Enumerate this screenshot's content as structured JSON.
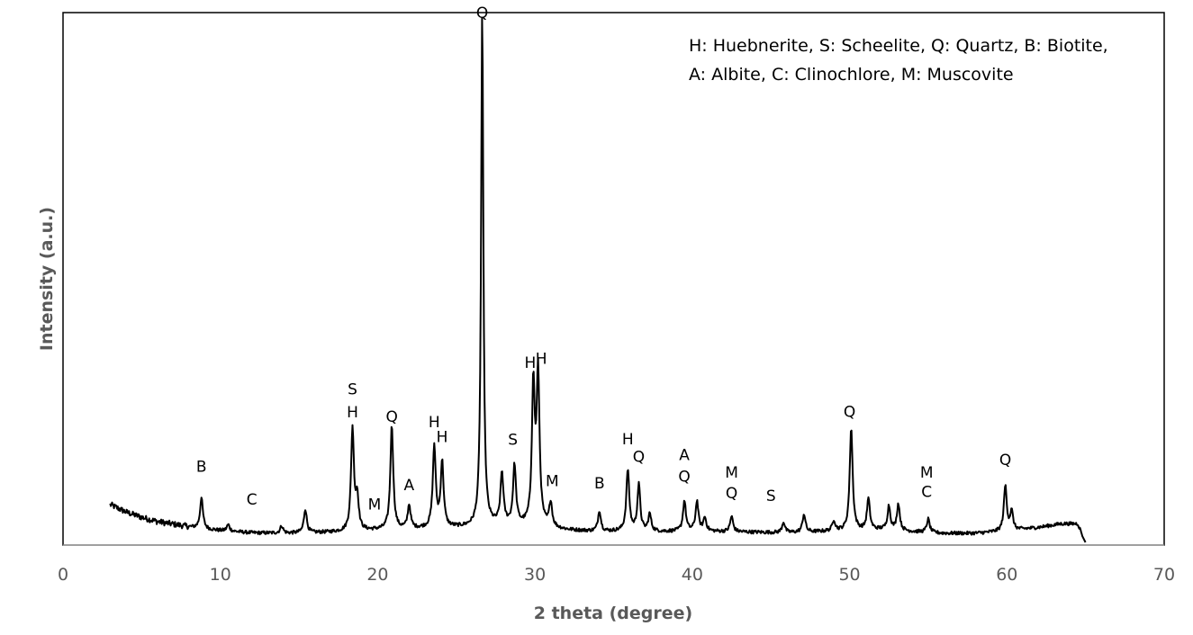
{
  "chart_data": {
    "type": "line",
    "title": "",
    "xlabel": "2 theta (degree)",
    "ylabel": "Intensity (a.u.)",
    "xlim": [
      0,
      70
    ],
    "ylim": [
      0,
      100
    ],
    "x_ticks": [
      0,
      10,
      20,
      30,
      40,
      50,
      60,
      70
    ],
    "x_tick_labels": [
      "0",
      "10",
      "20",
      "30",
      "40",
      "50",
      "60",
      "70"
    ],
    "y_ticks_shown": false,
    "grid": false,
    "legend_position": "top-right",
    "legend_lines": [
      "H: Huebnerite, S: Scheelite, Q: Quartz, B: Biotite,",
      "A: Albite, C: Clinochlore, M: Muscovite"
    ],
    "series": [
      {
        "color": "#000000",
        "baseline": [
          [
            3.0,
            7.6
          ],
          [
            4.0,
            6.2
          ],
          [
            5.0,
            5.2
          ],
          [
            6.0,
            4.4
          ],
          [
            7.0,
            3.9
          ],
          [
            8.0,
            3.4
          ],
          [
            9.0,
            3.0
          ],
          [
            10.0,
            2.7
          ],
          [
            12.0,
            2.3
          ],
          [
            14.0,
            2.2
          ],
          [
            16.0,
            2.3
          ],
          [
            18.0,
            2.5
          ],
          [
            20.0,
            2.8
          ],
          [
            22.0,
            3.0
          ],
          [
            24.0,
            3.2
          ],
          [
            26.0,
            3.3
          ],
          [
            27.0,
            3.6
          ],
          [
            28.0,
            3.8
          ],
          [
            30.0,
            3.5
          ],
          [
            32.0,
            2.8
          ],
          [
            34.0,
            2.5
          ],
          [
            36.0,
            2.6
          ],
          [
            38.0,
            2.5
          ],
          [
            40.0,
            2.6
          ],
          [
            42.0,
            2.5
          ],
          [
            44.0,
            2.4
          ],
          [
            46.0,
            2.3
          ],
          [
            48.0,
            2.5
          ],
          [
            50.0,
            2.7
          ],
          [
            52.0,
            2.9
          ],
          [
            54.0,
            2.5
          ],
          [
            56.0,
            2.2
          ],
          [
            58.0,
            2.2
          ],
          [
            60.0,
            2.6
          ],
          [
            62.0,
            3.3
          ],
          [
            63.5,
            4.0
          ],
          [
            64.5,
            4.0
          ],
          [
            65.0,
            0.5
          ]
        ],
        "peaks": [
          [
            8.8,
            5.8
          ],
          [
            10.5,
            1.2
          ],
          [
            13.9,
            1.4
          ],
          [
            15.4,
            4.5
          ],
          [
            18.4,
            19.2
          ],
          [
            18.7,
            6.0
          ],
          [
            20.9,
            19.5
          ],
          [
            22.0,
            4.4
          ],
          [
            23.6,
            15.3
          ],
          [
            24.1,
            12.2
          ],
          [
            26.65,
            96.6
          ],
          [
            27.9,
            9.5
          ],
          [
            28.7,
            11.1
          ],
          [
            29.9,
            26.0
          ],
          [
            30.2,
            28.1
          ],
          [
            31.0,
            4.6
          ],
          [
            34.1,
            3.9
          ],
          [
            35.9,
            11.5
          ],
          [
            36.6,
            8.6
          ],
          [
            37.3,
            3.2
          ],
          [
            39.5,
            5.7
          ],
          [
            40.3,
            5.6
          ],
          [
            40.8,
            2.5
          ],
          [
            42.5,
            2.9
          ],
          [
            45.8,
            2.0
          ],
          [
            47.1,
            3.4
          ],
          [
            49.0,
            2.0
          ],
          [
            50.1,
            19.3
          ],
          [
            51.2,
            5.8
          ],
          [
            52.5,
            4.5
          ],
          [
            53.1,
            5.0
          ],
          [
            55.0,
            2.5
          ],
          [
            59.9,
            8.5
          ],
          [
            60.3,
            3.5
          ]
        ]
      }
    ],
    "annotations": [
      {
        "text": "Q",
        "x": 26.65,
        "y": 99.0
      },
      {
        "text": "S",
        "x": 18.4,
        "y": 28.3
      },
      {
        "text": "H",
        "x": 18.4,
        "y": 24.0
      },
      {
        "text": "Q",
        "x": 20.9,
        "y": 23.1
      },
      {
        "text": "H",
        "x": 23.6,
        "y": 22.1
      },
      {
        "text": "H",
        "x": 24.1,
        "y": 19.3
      },
      {
        "text": "A",
        "x": 22.0,
        "y": 10.3
      },
      {
        "text": "B",
        "x": 8.8,
        "y": 13.8
      },
      {
        "text": "C",
        "x": 12.0,
        "y": 7.6
      },
      {
        "text": "M",
        "x": 19.8,
        "y": 6.7
      },
      {
        "text": "S",
        "x": 28.6,
        "y": 18.8
      },
      {
        "text": "H",
        "x": 29.7,
        "y": 33.3
      },
      {
        "text": "H",
        "x": 30.4,
        "y": 34.0
      },
      {
        "text": "M",
        "x": 31.1,
        "y": 11.1
      },
      {
        "text": "B",
        "x": 34.1,
        "y": 10.6
      },
      {
        "text": "H",
        "x": 35.9,
        "y": 18.9
      },
      {
        "text": "Q",
        "x": 36.6,
        "y": 15.6
      },
      {
        "text": "A",
        "x": 39.5,
        "y": 16.0
      },
      {
        "text": "Q",
        "x": 39.5,
        "y": 11.9
      },
      {
        "text": "M",
        "x": 42.5,
        "y": 12.7
      },
      {
        "text": "Q",
        "x": 42.5,
        "y": 8.8
      },
      {
        "text": "S",
        "x": 45.0,
        "y": 8.3
      },
      {
        "text": "Q",
        "x": 50.0,
        "y": 24.1
      },
      {
        "text": "M",
        "x": 54.9,
        "y": 12.7
      },
      {
        "text": "C",
        "x": 54.9,
        "y": 9.0
      },
      {
        "text": "Q",
        "x": 59.9,
        "y": 15.0
      }
    ]
  }
}
